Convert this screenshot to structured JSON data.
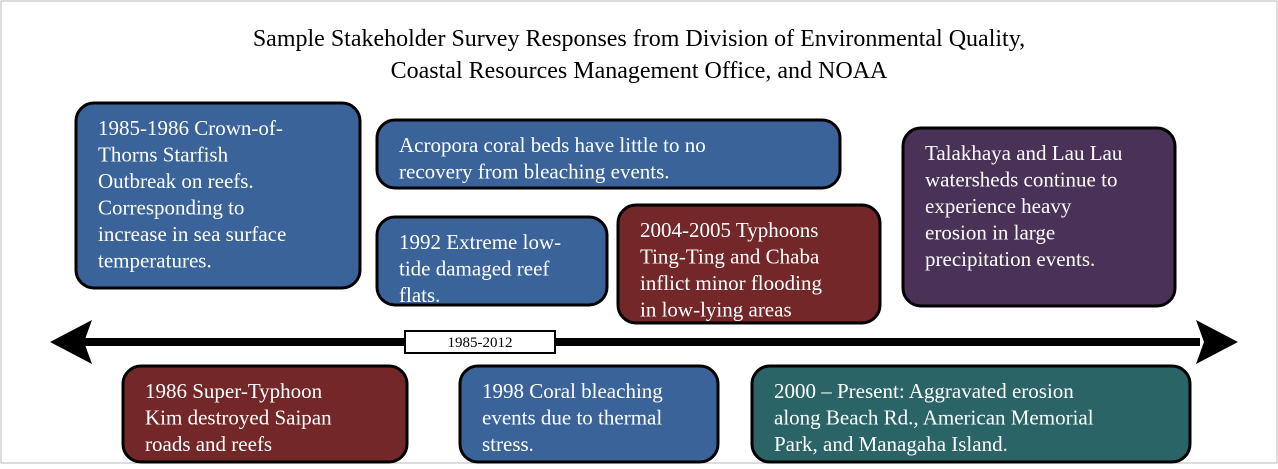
{
  "title": [
    "Sample Stakeholder Survey Responses from Division of Environmental Quality,",
    "Coastal Resources Management Office, and NOAA"
  ],
  "timeline_label": "1985-2012",
  "boxes": [
    {
      "lines": [
        "1985-1986 Crown-of-",
        "Thorns Starfish",
        "Outbreak on reefs.",
        "Corresponding to",
        "increase in sea surface",
        "temperatures."
      ]
    },
    {
      "lines": [
        "Acropora coral beds have little to no",
        "recovery from bleaching events."
      ]
    },
    {
      "lines": [
        "1992 Extreme low-",
        "tide damaged reef",
        "flats."
      ]
    },
    {
      "lines": [
        "2004-2005 Typhoons",
        "Ting-Ting and Chaba",
        "inflict minor flooding",
        "in low-lying  areas"
      ]
    },
    {
      "lines": [
        "Talakhaya and Lau Lau",
        "watersheds continue to",
        "experience heavy",
        "erosion in large",
        "precipitation events."
      ]
    },
    {
      "lines": [
        "1986 Super-Typhoon",
        "Kim destroyed Saipan",
        "roads and reefs"
      ]
    },
    {
      "lines": [
        "1998 Coral bleaching",
        "events due to thermal",
        "stress."
      ]
    },
    {
      "lines": [
        "2000 – Present: Aggravated erosion",
        "along Beach Rd., American Memorial",
        "Park, and Managaha Island."
      ]
    }
  ]
}
